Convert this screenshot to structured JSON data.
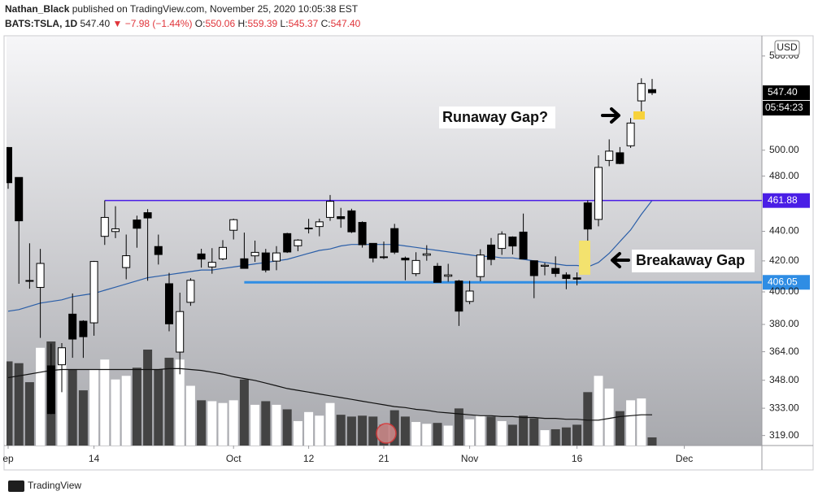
{
  "header": {
    "author": "Nathan_Black",
    "published": "published on TradingView.com, November 25, 2020 10:05:38 EST",
    "symbol": "BATS:TSLA, 1D",
    "last": "547.40",
    "change": "▼ −7.98 (−1.44%)",
    "ohlc": [
      {
        "label": "O:",
        "value": "550.06"
      },
      {
        "label": "H:",
        "value": "559.39"
      },
      {
        "label": "L:",
        "value": "545.37"
      },
      {
        "label": "C:",
        "value": "547.40"
      }
    ]
  },
  "currency": "USD",
  "brand": "TradingView",
  "chart_data": {
    "type": "candlestick",
    "categories": [
      "2020-09-01",
      "2020-09-02",
      "2020-09-03",
      "2020-09-04",
      "2020-09-08",
      "2020-09-09",
      "2020-09-10",
      "2020-09-11",
      "2020-09-14",
      "2020-09-15",
      "2020-09-16",
      "2020-09-17",
      "2020-09-18",
      "2020-09-21",
      "2020-09-22",
      "2020-09-23",
      "2020-09-24",
      "2020-09-25",
      "2020-09-28",
      "2020-09-29",
      "2020-09-30",
      "2020-10-01",
      "2020-10-02",
      "2020-10-05",
      "2020-10-06",
      "2020-10-07",
      "2020-10-08",
      "2020-10-09",
      "2020-10-12",
      "2020-10-13",
      "2020-10-14",
      "2020-10-15",
      "2020-10-16",
      "2020-10-19",
      "2020-10-20",
      "2020-10-21",
      "2020-10-22",
      "2020-10-23",
      "2020-10-26",
      "2020-10-27",
      "2020-10-28",
      "2020-10-29",
      "2020-10-30",
      "2020-11-02",
      "2020-11-03",
      "2020-11-04",
      "2020-11-05",
      "2020-11-06",
      "2020-11-09",
      "2020-11-10",
      "2020-11-11",
      "2020-11-12",
      "2020-11-13",
      "2020-11-16",
      "2020-11-17",
      "2020-11-18",
      "2020-11-19",
      "2020-11-20",
      "2020-11-23",
      "2020-11-24",
      "2020-11-25"
    ],
    "open": [
      502.14,
      478.99,
      407.23,
      402.81,
      356.0,
      356.6,
      386.21,
      381.94,
      380.95,
      436.56,
      439.87,
      415.6,
      447.94,
      453.13,
      429.6,
      405.16,
      363.8,
      393.47,
      424.62,
      416.0,
      421.32,
      440.76,
      421.39,
      423.35,
      425.3,
      419.87,
      438.44,
      430.13,
      442.0,
      443.35,
      449.78,
      450.31,
      454.44,
      446.24,
      431.75,
      422.7,
      441.92,
      421.84,
      411.63,
      423.76,
      416.48,
      409.96,
      406.9,
      394.0,
      409.73,
      430.62,
      428.3,
      436.1,
      439.5,
      420.09,
      416.45,
      415.05,
      410.85,
      408.93,
      460.17,
      448.35,
      492.0,
      497.99,
      503.5,
      540.4,
      550.06
    ],
    "high": [
      502.49,
      479.04,
      431.8,
      428.0,
      368.74,
      369.0,
      398.99,
      382.5,
      420.0,
      461.94,
      457.79,
      437.79,
      451.0,
      455.68,
      437.76,
      412.15,
      399.5,
      408.73,
      428.08,
      428.5,
      433.93,
      448.88,
      439.13,
      433.64,
      428.0,
      429.9,
      439.0,
      434.59,
      448.74,
      448.89,
      465.9,
      456.57,
      455.95,
      447.0,
      431.75,
      432.95,
      445.23,
      422.89,
      425.76,
      430.5,
      418.6,
      418.06,
      407.59,
      406.98,
      427.77,
      435.4,
      440.0,
      436.57,
      452.5,
      420.09,
      418.7,
      423.0,
      412.53,
      412.45,
      462.0,
      496.0,
      508.61,
      502.5,
      526.0,
      559.99,
      559.39
    ],
    "low": [
      470.51,
      405.12,
      402.0,
      372.02,
      329.88,
      341.51,
      360.56,
      360.5,
      373.3,
      430.7,
      435.31,
      408.0,
      428.8,
      407.07,
      417.6,
      375.88,
      351.3,
      391.3,
      415.55,
      411.6,
      420.47,
      434.42,
      415.0,
      419.33,
      412.45,
      413.85,
      425.3,
      426.46,
      438.58,
      436.6,
      447.35,
      442.5,
      438.85,
      428.87,
      419.05,
      421.25,
      424.51,
      407.38,
      410.0,
      420.1,
      406.0,
      406.46,
      379.11,
      392.3,
      406.69,
      417.1,
      424.0,
      424.28,
      421.0,
      396.03,
      410.58,
      409.52,
      401.66,
      404.09,
      433.01,
      443.5,
      487.57,
      489.06,
      501.79,
      526.2,
      545.37
    ],
    "close": [
      475.05,
      447.37,
      407.0,
      418.32,
      330.21,
      366.28,
      371.34,
      372.72,
      419.62,
      449.76,
      441.76,
      423.43,
      442.15,
      449.39,
      424.23,
      380.36,
      387.79,
      407.34,
      421.2,
      419.07,
      429.01,
      448.16,
      415.09,
      425.68,
      413.98,
      425.3,
      425.92,
      434.0,
      442.3,
      446.65,
      461.3,
      448.88,
      439.67,
      430.83,
      421.94,
      422.64,
      425.79,
      420.63,
      420.28,
      424.68,
      406.02,
      410.83,
      388.04,
      400.51,
      423.9,
      420.98,
      438.09,
      429.95,
      421.26,
      410.36,
      417.13,
      411.76,
      408.5,
      408.09,
      441.61,
      486.64,
      499.27,
      489.61,
      521.85,
      555.38,
      547.4
    ],
    "volume": [
      93,
      91,
      70,
      108,
      115,
      90,
      84,
      61,
      84,
      95,
      73,
      77,
      86,
      106,
      84,
      97,
      95,
      66,
      50,
      49,
      47,
      50,
      73,
      45,
      49,
      45,
      40,
      27,
      37,
      33,
      47,
      34,
      32,
      33,
      32,
      23,
      39,
      32,
      26,
      24,
      25,
      22,
      41,
      29,
      33,
      32,
      27,
      23,
      33,
      30,
      17,
      18,
      20,
      23,
      59,
      77,
      63,
      38,
      50,
      52,
      9
    ],
    "ma": [
      388,
      389,
      391,
      393,
      394,
      395,
      397,
      398,
      399,
      401,
      403,
      405,
      407,
      409,
      410,
      411,
      412,
      413,
      414,
      414,
      415,
      416,
      417,
      418,
      419,
      420,
      421,
      423,
      425,
      427,
      428,
      430,
      431,
      431,
      431,
      431,
      431,
      430,
      429,
      428,
      427,
      426,
      425,
      424,
      423,
      423,
      422,
      422,
      421,
      420,
      419,
      418,
      417,
      417,
      416,
      419,
      425,
      433,
      441,
      452,
      462
    ],
    "volume_ma": [
      75,
      77,
      79,
      81,
      83,
      84,
      84,
      84,
      84,
      84,
      84,
      84,
      84,
      84,
      84,
      85,
      85,
      84,
      83,
      81,
      79,
      76,
      74,
      72,
      69,
      66,
      63,
      61,
      59,
      57,
      55,
      53,
      51,
      49,
      47,
      45,
      43,
      42,
      40,
      39,
      37,
      36,
      35,
      34,
      33,
      33,
      32,
      32,
      31,
      31,
      30,
      30,
      29,
      29,
      28,
      28,
      30,
      32,
      33,
      34,
      34
    ],
    "up_color": "#ffffff",
    "down_color": "#000000",
    "volume_up_color": "#ffffff",
    "volume_down_color": "#434343",
    "ma_color": "#2a5ea8",
    "volume_ma_color": "#111111",
    "ylog": true,
    "ylim": [
      314,
      598
    ],
    "yticks": [
      {
        "value": 580,
        "label": "580.00"
      },
      {
        "value": 500,
        "label": "500.00"
      },
      {
        "value": 480,
        "label": "480.00"
      },
      {
        "value": 440,
        "label": "440.00"
      },
      {
        "value": 420,
        "label": "420.00"
      },
      {
        "value": 400,
        "label": "400.00"
      },
      {
        "value": 380,
        "label": "380.00"
      },
      {
        "value": 364,
        "label": "364.00"
      },
      {
        "value": 348,
        "label": "348.00"
      },
      {
        "value": 333,
        "label": "333.00"
      },
      {
        "value": 319,
        "label": "319.00"
      }
    ],
    "xticks": [
      {
        "value": 0,
        "label": "ep"
      },
      {
        "value": 8,
        "label": "14"
      },
      {
        "value": 21,
        "label": "Oct"
      },
      {
        "value": 28,
        "label": "12"
      },
      {
        "value": 35,
        "label": "21"
      },
      {
        "value": 43,
        "label": "Nov"
      },
      {
        "value": 53,
        "label": "16"
      },
      {
        "value": 63,
        "label": "Dec"
      }
    ],
    "levels": [
      {
        "value": 461.88,
        "color": "#4a1ee6",
        "start": "2020-09-15"
      },
      {
        "value": 406.05,
        "color": "#2f8de4",
        "start": "2020-10-02"
      }
    ],
    "last_price": {
      "value": 547.4,
      "label": "547.40"
    },
    "countdown": "05:54:23",
    "annotations": [
      "Runaway Gap?",
      "Breakaway Gap"
    ]
  }
}
